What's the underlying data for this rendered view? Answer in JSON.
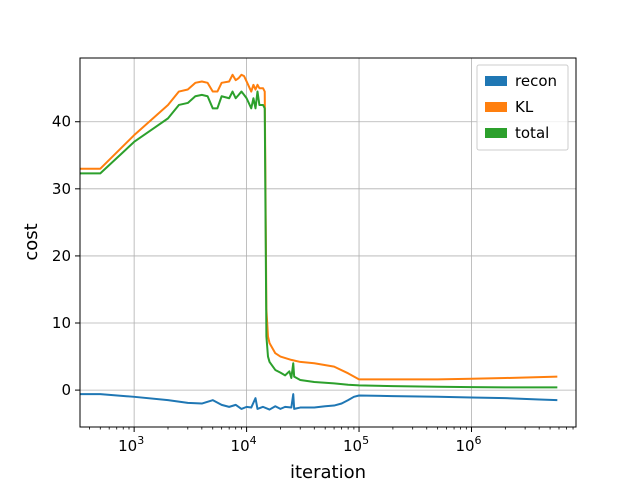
{
  "chart_data": {
    "type": "line",
    "xlabel": "iteration",
    "ylabel": "cost",
    "xscale": "log",
    "xlim": [
      330,
      8500000
    ],
    "ylim": [
      -5.5,
      49.5
    ],
    "grid": true,
    "legend_position": "top-right",
    "x_ticks": [
      {
        "value": 1000,
        "base": "10",
        "exp": "3"
      },
      {
        "value": 10000,
        "base": "10",
        "exp": "4"
      },
      {
        "value": 100000,
        "base": "10",
        "exp": "5"
      },
      {
        "value": 1000000,
        "base": "10",
        "exp": "6"
      }
    ],
    "y_ticks": [
      {
        "value": 0,
        "label": "0"
      },
      {
        "value": 10,
        "label": "10"
      },
      {
        "value": 20,
        "label": "20"
      },
      {
        "value": 30,
        "label": "30"
      },
      {
        "value": 40,
        "label": "40"
      }
    ],
    "series": [
      {
        "name": "recon",
        "color": "#1f77b4",
        "points": [
          [
            330,
            -0.6
          ],
          [
            500,
            -0.6
          ],
          [
            1000,
            -1.0
          ],
          [
            2000,
            -1.5
          ],
          [
            3000,
            -1.9
          ],
          [
            4000,
            -2.0
          ],
          [
            5000,
            -1.5
          ],
          [
            6000,
            -2.2
          ],
          [
            7000,
            -2.5
          ],
          [
            8000,
            -2.2
          ],
          [
            9000,
            -2.8
          ],
          [
            10000,
            -2.5
          ],
          [
            11000,
            -2.6
          ],
          [
            12000,
            -1.2
          ],
          [
            12500,
            -2.8
          ],
          [
            14000,
            -2.5
          ],
          [
            16000,
            -2.9
          ],
          [
            18000,
            -2.4
          ],
          [
            20000,
            -2.8
          ],
          [
            22000,
            -2.5
          ],
          [
            25000,
            -2.6
          ],
          [
            26000,
            -0.6
          ],
          [
            26500,
            -2.8
          ],
          [
            30000,
            -2.6
          ],
          [
            40000,
            -2.6
          ],
          [
            50000,
            -2.4
          ],
          [
            60000,
            -2.3
          ],
          [
            70000,
            -2.0
          ],
          [
            80000,
            -1.5
          ],
          [
            90000,
            -1.0
          ],
          [
            100000,
            -0.8
          ],
          [
            200000,
            -0.9
          ],
          [
            500000,
            -1.0
          ],
          [
            1000000,
            -1.1
          ],
          [
            2000000,
            -1.2
          ],
          [
            4000000,
            -1.4
          ],
          [
            5800000,
            -1.5
          ]
        ]
      },
      {
        "name": "KL",
        "color": "#ff7f0e",
        "points": [
          [
            330,
            33.0
          ],
          [
            500,
            33.0
          ],
          [
            1000,
            38.0
          ],
          [
            2000,
            42.5
          ],
          [
            2500,
            44.5
          ],
          [
            3000,
            44.8
          ],
          [
            3500,
            45.8
          ],
          [
            4000,
            46.0
          ],
          [
            4500,
            45.8
          ],
          [
            5000,
            44.5
          ],
          [
            5500,
            44.5
          ],
          [
            6000,
            45.8
          ],
          [
            7000,
            46.0
          ],
          [
            7500,
            47.0
          ],
          [
            8000,
            46.2
          ],
          [
            8500,
            46.5
          ],
          [
            9000,
            47.0
          ],
          [
            9500,
            46.8
          ],
          [
            10000,
            46.0
          ],
          [
            11000,
            44.5
          ],
          [
            11500,
            45.5
          ],
          [
            12000,
            44.8
          ],
          [
            12500,
            45.5
          ],
          [
            13000,
            45.0
          ],
          [
            14000,
            45.0
          ],
          [
            14500,
            44.5
          ],
          [
            15000,
            12.0
          ],
          [
            15500,
            8.0
          ],
          [
            16000,
            7.0
          ],
          [
            18000,
            5.5
          ],
          [
            20000,
            5.0
          ],
          [
            25000,
            4.5
          ],
          [
            30000,
            4.2
          ],
          [
            40000,
            4.0
          ],
          [
            60000,
            3.5
          ],
          [
            80000,
            2.5
          ],
          [
            100000,
            1.6
          ],
          [
            200000,
            1.6
          ],
          [
            500000,
            1.6
          ],
          [
            1000000,
            1.7
          ],
          [
            2000000,
            1.8
          ],
          [
            5800000,
            2.0
          ]
        ]
      },
      {
        "name": "total",
        "color": "#2ca02c",
        "points": [
          [
            330,
            32.3
          ],
          [
            500,
            32.3
          ],
          [
            1000,
            37.0
          ],
          [
            2000,
            40.5
          ],
          [
            2500,
            42.5
          ],
          [
            3000,
            42.8
          ],
          [
            3500,
            43.8
          ],
          [
            4000,
            44.0
          ],
          [
            4500,
            43.8
          ],
          [
            5000,
            42.0
          ],
          [
            5500,
            42.0
          ],
          [
            6000,
            43.8
          ],
          [
            7000,
            43.5
          ],
          [
            7500,
            44.5
          ],
          [
            8000,
            43.5
          ],
          [
            8500,
            44.0
          ],
          [
            9000,
            44.5
          ],
          [
            9500,
            44.0
          ],
          [
            10000,
            43.5
          ],
          [
            11000,
            42.0
          ],
          [
            11500,
            43.5
          ],
          [
            12000,
            42.0
          ],
          [
            12500,
            44.5
          ],
          [
            13000,
            42.5
          ],
          [
            14000,
            42.5
          ],
          [
            14500,
            42.0
          ],
          [
            15000,
            8.0
          ],
          [
            15500,
            5.0
          ],
          [
            16000,
            4.2
          ],
          [
            18000,
            3.0
          ],
          [
            20000,
            2.6
          ],
          [
            22000,
            2.2
          ],
          [
            24000,
            2.8
          ],
          [
            25000,
            1.8
          ],
          [
            26000,
            4.0
          ],
          [
            26500,
            2.0
          ],
          [
            30000,
            1.5
          ],
          [
            40000,
            1.2
          ],
          [
            60000,
            1.0
          ],
          [
            80000,
            0.8
          ],
          [
            100000,
            0.7
          ],
          [
            200000,
            0.6
          ],
          [
            500000,
            0.5
          ],
          [
            1000000,
            0.45
          ],
          [
            2000000,
            0.4
          ],
          [
            5800000,
            0.4
          ]
        ]
      }
    ]
  }
}
